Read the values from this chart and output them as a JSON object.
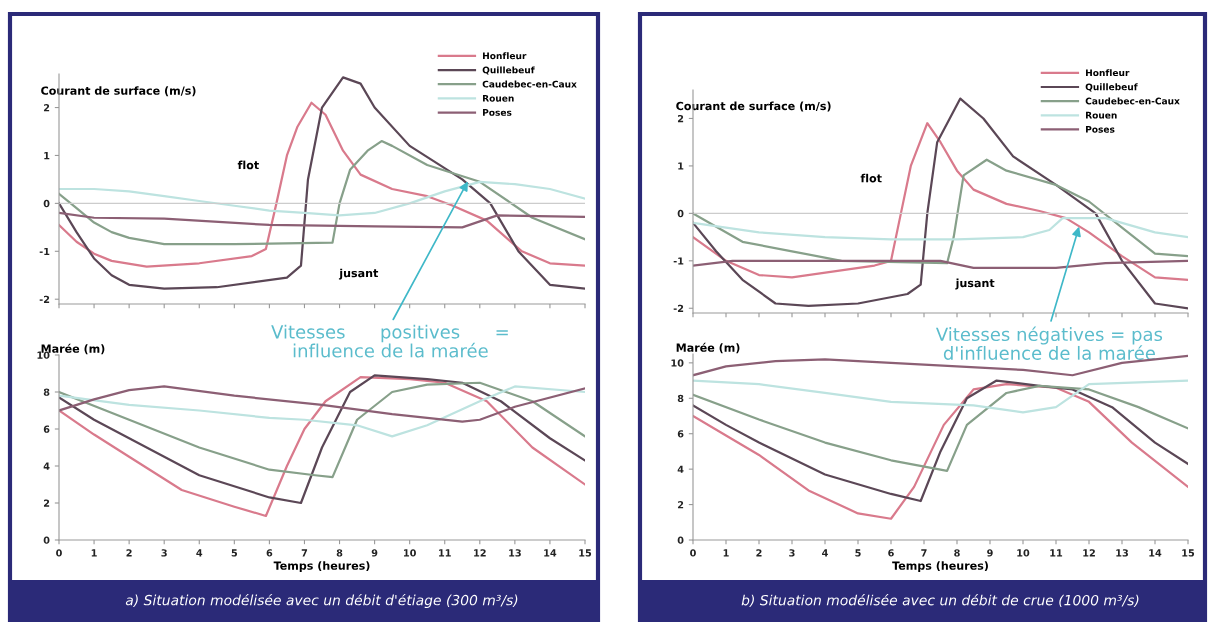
{
  "chart_data": [
    {
      "type": "line",
      "ylabel": "Courant de surface (m/s)",
      "xlim": [
        0,
        15
      ],
      "xticks": [
        {
          "value": 0,
          "label": null
        },
        {
          "value": 1,
          "label": null
        },
        {
          "value": 2,
          "label": null
        },
        {
          "value": 3,
          "label": null
        },
        {
          "value": 4,
          "label": null
        },
        {
          "value": 5,
          "label": null
        },
        {
          "value": 6,
          "label": null
        },
        {
          "value": 7,
          "label": null
        },
        {
          "value": 8,
          "label": null
        },
        {
          "value": 9,
          "label": null
        },
        {
          "value": 10,
          "label": null
        },
        {
          "value": 11,
          "label": null
        },
        {
          "value": 12,
          "label": null
        },
        {
          "value": 13,
          "label": null
        },
        {
          "value": 14,
          "label": null
        },
        {
          "value": 15,
          "label": null
        }
      ],
      "ylim": [
        -2.1,
        2.7
      ],
      "yticks": [
        -2,
        -1,
        0,
        1,
        2
      ],
      "tick_labels": "y",
      "legend": "top right",
      "grid": false,
      "series": [
        {
          "name": "Honfleur",
          "color": "#d97a8c",
          "x": [
            0,
            0.5,
            1,
            1.5,
            2.5,
            4,
            5.5,
            5.9,
            6.2,
            6.5,
            6.8,
            7.2,
            7.6,
            8.1,
            8.6,
            9.5,
            10.5,
            11.2,
            12.2,
            13.2,
            14,
            15
          ],
          "values": [
            -0.45,
            -0.8,
            -1.05,
            -1.2,
            -1.32,
            -1.25,
            -1.1,
            -0.95,
            0,
            1.0,
            1.6,
            2.1,
            1.85,
            1.1,
            0.6,
            0.3,
            0.15,
            -0.04,
            -0.36,
            -1.0,
            -1.25,
            -1.3
          ]
        },
        {
          "name": "Quillebeuf",
          "color": "#5b4756",
          "x": [
            0,
            0.5,
            1,
            1.5,
            2,
            3,
            4.5,
            6.5,
            6.9,
            7.1,
            7.5,
            8.1,
            8.6,
            9,
            10,
            11.5,
            12.3,
            13.1,
            14,
            15
          ],
          "values": [
            0,
            -0.6,
            -1.15,
            -1.5,
            -1.7,
            -1.78,
            -1.75,
            -1.55,
            -1.3,
            0.5,
            2.0,
            2.63,
            2.5,
            2.0,
            1.2,
            0.5,
            0,
            -1.0,
            -1.7,
            -1.78
          ]
        },
        {
          "name": "Caudebec-en-Caux",
          "color": "#87a08a",
          "x": [
            0,
            0.5,
            1,
            1.5,
            2,
            3,
            5,
            7.8,
            8.0,
            8.3,
            8.8,
            9.2,
            9.5,
            10.5,
            12,
            13.5,
            15
          ],
          "values": [
            0.2,
            -0.1,
            -0.4,
            -0.6,
            -0.72,
            -0.85,
            -0.85,
            -0.82,
            0.0,
            0.7,
            1.1,
            1.3,
            1.2,
            0.8,
            0.45,
            -0.3,
            -0.75
          ]
        },
        {
          "name": "Rouen",
          "color": "#bde3e0",
          "x": [
            0,
            1,
            2,
            3,
            4,
            5,
            6,
            7,
            8,
            9,
            10,
            11,
            12,
            13,
            14,
            15
          ],
          "values": [
            0.3,
            0.3,
            0.25,
            0.15,
            0.05,
            -0.05,
            -0.15,
            -0.2,
            -0.25,
            -0.2,
            0,
            0.25,
            0.45,
            0.4,
            0.3,
            0.1
          ]
        },
        {
          "name": "Poses",
          "color": "#8c5f74",
          "x": [
            0,
            1,
            3,
            6,
            9,
            11.5,
            12.5,
            15
          ],
          "values": [
            -0.2,
            -0.3,
            -0.32,
            -0.45,
            -0.48,
            -0.5,
            -0.25,
            -0.28
          ]
        }
      ],
      "ref_lines": [
        {
          "axis": "y",
          "value": 0,
          "color": "#cccccc"
        }
      ],
      "annotations": [
        "flot",
        "jusant",
        {
          "text": "Vitesses      positives      =\ninfluence de la marée",
          "x": 11.66,
          "y": 0.46
        }
      ]
    },
    {
      "type": "line",
      "ylabel": "Courant de surface (m/s)",
      "xlim": [
        0,
        15
      ],
      "xticks": [
        {
          "value": 0,
          "label": null
        },
        {
          "value": 1,
          "label": null
        },
        {
          "value": 2,
          "label": null
        },
        {
          "value": 3,
          "label": null
        },
        {
          "value": 4,
          "label": null
        },
        {
          "value": 5,
          "label": null
        },
        {
          "value": 6,
          "label": null
        },
        {
          "value": 7,
          "label": null
        },
        {
          "value": 8,
          "label": null
        },
        {
          "value": 9,
          "label": null
        },
        {
          "value": 10,
          "label": null
        },
        {
          "value": 11,
          "label": null
        },
        {
          "value": 12,
          "label": null
        },
        {
          "value": 13,
          "label": null
        },
        {
          "value": 14,
          "label": null
        },
        {
          "value": 15,
          "label": null
        }
      ],
      "ylim": [
        -2.1,
        2.6
      ],
      "yticks": [
        -2,
        -1,
        0,
        1,
        2
      ],
      "tick_labels": "y",
      "legend": "top right",
      "grid": false,
      "series": [
        {
          "name": "Honfleur",
          "color": "#d97a8c",
          "x": [
            0,
            1,
            2,
            3,
            5.5,
            6,
            6.3,
            6.6,
            7.1,
            7.5,
            8,
            8.5,
            9.5,
            10.5,
            11.3,
            12,
            13,
            14,
            15
          ],
          "values": [
            -0.5,
            -1.0,
            -1.3,
            -1.35,
            -1.1,
            -1.0,
            0,
            1.0,
            1.9,
            1.5,
            0.9,
            0.5,
            0.2,
            0.05,
            -0.1,
            -0.4,
            -0.9,
            -1.35,
            -1.4
          ]
        },
        {
          "name": "Quillebeuf",
          "color": "#5b4756",
          "x": [
            0,
            0.7,
            1.5,
            2.5,
            3.5,
            5,
            6.5,
            6.9,
            7.1,
            7.4,
            8.1,
            8.8,
            9.7,
            11,
            11.6,
            12.2,
            13,
            14,
            15
          ],
          "values": [
            -0.2,
            -0.8,
            -1.4,
            -1.9,
            -1.95,
            -1.9,
            -1.7,
            -1.5,
            0,
            1.5,
            2.42,
            2.0,
            1.2,
            0.6,
            0.3,
            0,
            -1.0,
            -1.9,
            -2.0
          ]
        },
        {
          "name": "Caudebec-en-Caux",
          "color": "#87a08a",
          "x": [
            0,
            1.5,
            3,
            4.5,
            7.7,
            7.9,
            8.2,
            8.9,
            9.5,
            11,
            12,
            13,
            14,
            15
          ],
          "values": [
            0,
            -0.6,
            -0.8,
            -1.0,
            -1.05,
            -0.5,
            0.8,
            1.13,
            0.9,
            0.6,
            0.25,
            -0.3,
            -0.85,
            -0.9
          ]
        },
        {
          "name": "Rouen",
          "color": "#bde3e0",
          "x": [
            0,
            1,
            2,
            4,
            6,
            8,
            10,
            10.8,
            11.2,
            12.5,
            13.5,
            14,
            15
          ],
          "values": [
            -0.2,
            -0.3,
            -0.4,
            -0.5,
            -0.55,
            -0.55,
            -0.5,
            -0.35,
            -0.1,
            -0.1,
            -0.3,
            -0.4,
            -0.5
          ]
        },
        {
          "name": "Poses",
          "color": "#8c5f74",
          "x": [
            0,
            1.2,
            3,
            7.5,
            8.5,
            11,
            12.5,
            15
          ],
          "values": [
            -1.1,
            -1.0,
            -1.0,
            -1.0,
            -1.15,
            -1.15,
            -1.05,
            -1.0
          ]
        }
      ],
      "ref_lines": [
        {
          "axis": "y",
          "value": 0,
          "color": "#cccccc"
        }
      ],
      "annotations": [
        "flot",
        "jusant",
        {
          "text": "Vitesses négatives = pas\nd'influence de la marée",
          "x": 11.7,
          "y": -0.28
        }
      ]
    },
    {
      "type": "line",
      "ylabel": "Marée (m)",
      "xlabel": "Temps (heures)",
      "xlim": [
        0,
        15
      ],
      "xticks": [
        0,
        1,
        2,
        3,
        4,
        5,
        6,
        7,
        8,
        9,
        10,
        11,
        12,
        13,
        14,
        15
      ],
      "ylim": [
        0,
        10
      ],
      "yticks": [
        0,
        2,
        4,
        6,
        8,
        10
      ],
      "grid": false,
      "series": [
        {
          "color": "#d97a8c",
          "x": [
            0,
            1,
            2,
            3.5,
            5,
            5.9,
            6.5,
            7,
            7.6,
            8.6,
            10,
            11,
            12.2,
            13.5,
            15
          ],
          "values": [
            7.0,
            5.7,
            4.5,
            2.7,
            1.8,
            1.3,
            4.0,
            6.0,
            7.5,
            8.8,
            8.7,
            8.5,
            7.5,
            5.0,
            3.0
          ]
        },
        {
          "color": "#5b4756",
          "x": [
            0,
            1,
            2,
            4,
            6,
            6.9,
            7.5,
            8.3,
            9,
            10.5,
            11.5,
            12.6,
            14,
            15
          ],
          "values": [
            7.7,
            6.5,
            5.5,
            3.5,
            2.3,
            2.0,
            5.0,
            8.0,
            8.9,
            8.7,
            8.5,
            7.5,
            5.5,
            4.3
          ]
        },
        {
          "color": "#87a08a",
          "x": [
            0,
            2,
            4,
            6,
            7.3,
            7.8,
            8.5,
            9.5,
            10.5,
            12,
            13.5,
            15
          ],
          "values": [
            8.0,
            6.5,
            5.0,
            3.8,
            3.5,
            3.4,
            6.5,
            8.0,
            8.4,
            8.5,
            7.5,
            5.6
          ]
        },
        {
          "color": "#bde3e0",
          "x": [
            0,
            2,
            4,
            6,
            7,
            8.5,
            9.5,
            10.5,
            12,
            13,
            15
          ],
          "values": [
            7.8,
            7.3,
            7.0,
            6.6,
            6.5,
            6.2,
            5.6,
            6.2,
            7.5,
            8.3,
            8.0
          ]
        },
        {
          "color": "#8c5f74",
          "x": [
            0,
            1,
            2,
            3,
            5,
            7.5,
            9.5,
            11.5,
            12,
            13,
            15
          ],
          "values": [
            7.0,
            7.6,
            8.1,
            8.3,
            7.8,
            7.3,
            6.8,
            6.4,
            6.5,
            7.2,
            8.2
          ]
        }
      ],
      "annotations": [
        "a) Situation modélisée avec un débit d'étiage (300 m³/s)"
      ]
    },
    {
      "type": "line",
      "ylabel": "Marée (m)",
      "xlabel": "Temps (heures)",
      "xlim": [
        0,
        15
      ],
      "xticks": [
        0,
        1,
        2,
        3,
        4,
        5,
        6,
        7,
        8,
        9,
        10,
        11,
        12,
        13,
        14,
        15
      ],
      "ylim": [
        0,
        10.5
      ],
      "yticks": [
        0,
        2,
        4,
        6,
        8,
        10
      ],
      "grid": false,
      "series": [
        {
          "color": "#d97a8c",
          "x": [
            0,
            1,
            2,
            3.5,
            5,
            6,
            6.7,
            7.6,
            8.5,
            9.5,
            11,
            12,
            13.3,
            15
          ],
          "values": [
            7.0,
            5.9,
            4.8,
            2.8,
            1.5,
            1.2,
            3.0,
            6.5,
            8.5,
            8.8,
            8.6,
            7.8,
            5.5,
            3.0
          ]
        },
        {
          "color": "#5b4756",
          "x": [
            0,
            1,
            2,
            4,
            6,
            6.9,
            7.5,
            8.3,
            9.2,
            10.5,
            11.5,
            12.7,
            14,
            15
          ],
          "values": [
            7.6,
            6.5,
            5.5,
            3.7,
            2.6,
            2.2,
            5.0,
            8.0,
            9.0,
            8.7,
            8.5,
            7.5,
            5.5,
            4.3
          ]
        },
        {
          "color": "#87a08a",
          "x": [
            0,
            2,
            4,
            6,
            7.7,
            8.3,
            9.5,
            10.5,
            12,
            13.5,
            15
          ],
          "values": [
            8.2,
            6.8,
            5.5,
            4.5,
            3.9,
            6.5,
            8.3,
            8.7,
            8.5,
            7.5,
            6.3
          ]
        },
        {
          "color": "#bde3e0",
          "x": [
            0,
            2,
            4,
            6,
            8.5,
            10,
            11,
            12,
            15
          ],
          "values": [
            9.0,
            8.8,
            8.3,
            7.8,
            7.6,
            7.2,
            7.5,
            8.8,
            9.0
          ]
        },
        {
          "color": "#8c5f74",
          "x": [
            0,
            1,
            2.5,
            4,
            7,
            10,
            11.5,
            13,
            15
          ],
          "values": [
            9.3,
            9.8,
            10.1,
            10.2,
            9.9,
            9.6,
            9.3,
            10.0,
            10.4
          ]
        }
      ],
      "annotations": [
        "b) Situation modélisée avec un débit de crue (1000 m³/s)"
      ]
    }
  ]
}
